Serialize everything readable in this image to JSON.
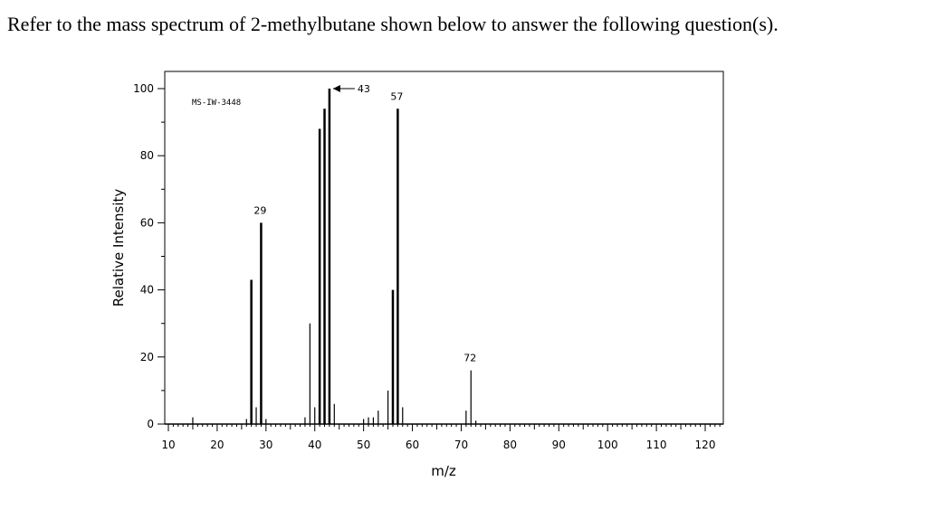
{
  "question": "Refer to the mass spectrum of 2-methylbutane shown below to answer the following question(s).",
  "chart_data": {
    "type": "bar",
    "spectrum_id": "MS-IW-3448",
    "xlabel": "m/z",
    "ylabel": "Relative Intensity",
    "xlim": [
      8,
      124
    ],
    "ylim": [
      0,
      105
    ],
    "xticks": [
      10,
      20,
      30,
      40,
      50,
      60,
      70,
      80,
      90,
      100,
      110,
      120
    ],
    "yticks": [
      0,
      20,
      40,
      60,
      80,
      100
    ],
    "peaks": [
      {
        "mz": 15,
        "intensity": 2
      },
      {
        "mz": 26,
        "intensity": 1.5
      },
      {
        "mz": 27,
        "intensity": 43
      },
      {
        "mz": 28,
        "intensity": 5
      },
      {
        "mz": 29,
        "intensity": 60
      },
      {
        "mz": 30,
        "intensity": 1.5
      },
      {
        "mz": 38,
        "intensity": 2
      },
      {
        "mz": 39,
        "intensity": 30
      },
      {
        "mz": 40,
        "intensity": 5
      },
      {
        "mz": 41,
        "intensity": 88
      },
      {
        "mz": 42,
        "intensity": 94
      },
      {
        "mz": 43,
        "intensity": 100
      },
      {
        "mz": 44,
        "intensity": 6
      },
      {
        "mz": 50,
        "intensity": 1.5
      },
      {
        "mz": 51,
        "intensity": 2
      },
      {
        "mz": 52,
        "intensity": 2
      },
      {
        "mz": 53,
        "intensity": 4
      },
      {
        "mz": 55,
        "intensity": 10
      },
      {
        "mz": 56,
        "intensity": 40
      },
      {
        "mz": 57,
        "intensity": 94
      },
      {
        "mz": 58,
        "intensity": 5
      },
      {
        "mz": 71,
        "intensity": 4
      },
      {
        "mz": 72,
        "intensity": 16
      },
      {
        "mz": 73,
        "intensity": 1
      }
    ],
    "annotations": [
      {
        "label": "29",
        "mz": 29,
        "intensity": 60
      },
      {
        "label": "43",
        "mz": 43,
        "intensity": 100,
        "arrow": true
      },
      {
        "label": "57",
        "mz": 57,
        "intensity": 94
      },
      {
        "label": "72",
        "mz": 72,
        "intensity": 16
      }
    ],
    "grid": false,
    "legend": "none"
  }
}
